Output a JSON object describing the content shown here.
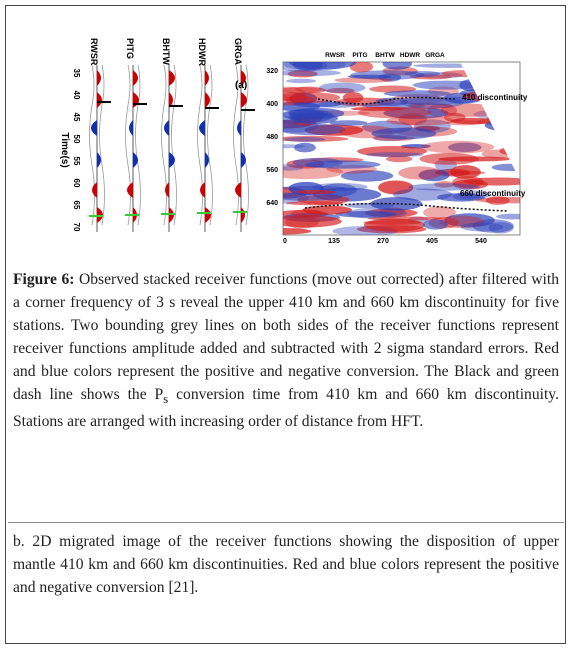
{
  "figure": {
    "panel_a": {
      "stations": [
        "RWSR",
        "PITG",
        "BHTW",
        "HDWR",
        "GRGA"
      ],
      "panel_label": "(a)",
      "y_axis_label": "Time(s)",
      "y_ticks": [
        "35",
        "40",
        "45",
        "50",
        "55",
        "60",
        "65",
        "70"
      ]
    },
    "panel_b": {
      "stations": [
        "RWSR",
        "PITG",
        "BHTW",
        "HDWR",
        "GRGA"
      ],
      "y_ticks": [
        "320",
        "400",
        "480",
        "560",
        "640"
      ],
      "x_ticks": [
        "0",
        "135",
        "270",
        "405",
        "540"
      ],
      "annotations": [
        "410 discontinuity",
        "660 discontinuity"
      ]
    }
  },
  "caption": {
    "label": "Figure 6:",
    "text_before": " Observed stacked receiver functions (move out corrected) after filtered with a corner frequency of 3 s reveal the upper 410 km and 660 km discontinuity for five stations. Two bounding grey lines on both sides of the receiver functions represent receiver functions amplitude added and subtracted with 2 sigma standard errors. Red and blue colors represent the positive and negative conversion. The Black and green dash line shows the P",
    "subscript": "s",
    "text_after": " conversion time from 410 km and 660 km discontinuity. Stations are arranged with increasing order of distance from HFT.",
    "part_b": "b. 2D migrated image of the receiver functions showing the disposition of upper mantle 410 km and 660 km discontinuities. Red and blue colors represent the positive and negative conversion [21]."
  }
}
